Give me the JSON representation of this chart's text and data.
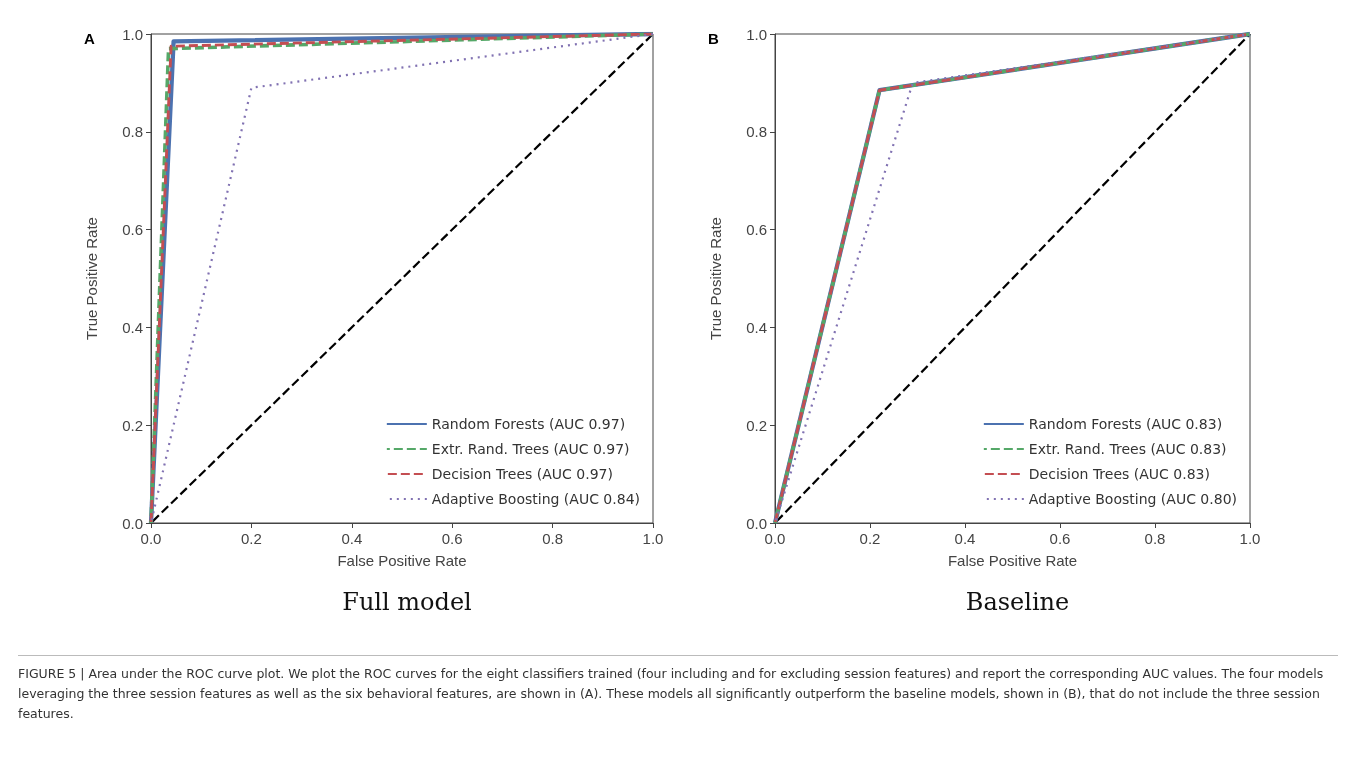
{
  "chart_data": [
    {
      "type": "line",
      "title": "A",
      "subtitle": "Full model",
      "xlabel": "False Positive Rate",
      "ylabel": "True Positive Rate",
      "xlim": [
        0,
        1
      ],
      "ylim": [
        0,
        1
      ],
      "xticks": [
        {
          "value": 0,
          "label": "0.0"
        },
        {
          "value": 0.2,
          "label": "0.2"
        },
        {
          "value": 0.4,
          "label": "0.4"
        },
        {
          "value": 0.6,
          "label": "0.6"
        },
        {
          "value": 0.8,
          "label": "0.8"
        },
        {
          "value": 1,
          "label": "1.0"
        }
      ],
      "yticks": [
        {
          "value": 0,
          "label": "0.0"
        },
        {
          "value": 0.2,
          "label": "0.2"
        },
        {
          "value": 0.4,
          "label": "0.4"
        },
        {
          "value": 0.6,
          "label": "0.6"
        },
        {
          "value": 0.8,
          "label": "0.8"
        },
        {
          "value": 1,
          "label": "1.0"
        }
      ],
      "grid": false,
      "legend": "bottom right",
      "marker": "none",
      "series": [
        {
          "name": "Random Forests (AUC 0.97)",
          "color": "#4c72b0",
          "line_style": "solid",
          "x": [
            0,
            0.045,
            1
          ],
          "values": [
            0,
            0.985,
            1
          ]
        },
        {
          "name": "Extr. Rand. Trees (AUC 0.97)",
          "color": "#55a868",
          "line_style": "dashed",
          "x": [
            0,
            0.035,
            1
          ],
          "values": [
            0,
            0.97,
            1
          ]
        },
        {
          "name": "Decision Trees (AUC 0.97)",
          "color": "#c44e52",
          "line_style": "dashed",
          "x": [
            0,
            0.04,
            1
          ],
          "values": [
            0,
            0.975,
            1
          ]
        },
        {
          "name": "Adaptive Boosting (AUC 0.84)",
          "color": "#8172b2",
          "line_style": "dotted",
          "x": [
            0,
            0.2,
            1
          ],
          "values": [
            0,
            0.89,
            1
          ]
        },
        {
          "color": "#000000",
          "line_style": "dashed",
          "x": [
            0,
            1
          ],
          "values": [
            0,
            1
          ]
        }
      ],
      "annotations": [
        "FIGURE 5 | Area under the ROC curve plot. We plot the ROC curves for the eight classifiers trained (four including and for excluding session features) and report the corresponding AUC values. The four models leveraging the three session features as well as the six behavioral features, are shown in (A). These models all significantly outperform the baseline models, shown in (B), that do not include the three session features."
      ]
    },
    {
      "type": "line",
      "title": "B",
      "subtitle": "Baseline",
      "xlabel": "False Positive Rate",
      "ylabel": "True Positive Rate",
      "xlim": [
        0,
        1
      ],
      "ylim": [
        0,
        1
      ],
      "xticks": [
        {
          "value": 0,
          "label": "0.0"
        },
        {
          "value": 0.2,
          "label": "0.2"
        },
        {
          "value": 0.4,
          "label": "0.4"
        },
        {
          "value": 0.6,
          "label": "0.6"
        },
        {
          "value": 0.8,
          "label": "0.8"
        },
        {
          "value": 1,
          "label": "1.0"
        }
      ],
      "yticks": [
        {
          "value": 0,
          "label": "0.0"
        },
        {
          "value": 0.2,
          "label": "0.2"
        },
        {
          "value": 0.4,
          "label": "0.4"
        },
        {
          "value": 0.6,
          "label": "0.6"
        },
        {
          "value": 0.8,
          "label": "0.8"
        },
        {
          "value": 1,
          "label": "1.0"
        }
      ],
      "grid": false,
      "legend": "bottom right",
      "marker": "none",
      "series": [
        {
          "name": "Random Forests (AUC 0.83)",
          "color": "#4c72b0",
          "line_style": "solid",
          "x": [
            0,
            0.22,
            1
          ],
          "values": [
            0,
            0.885,
            1
          ]
        },
        {
          "name": "Extr. Rand. Trees (AUC 0.83)",
          "color": "#55a868",
          "line_style": "dashed",
          "x": [
            0,
            0.22,
            1
          ],
          "values": [
            0,
            0.885,
            1
          ]
        },
        {
          "name": "Decision Trees (AUC 0.83)",
          "color": "#c44e52",
          "line_style": "dashed",
          "x": [
            0,
            0.22,
            1
          ],
          "values": [
            0,
            0.885,
            1
          ]
        },
        {
          "name": "Adaptive Boosting (AUC 0.80)",
          "color": "#8172b2",
          "line_style": "dotted",
          "x": [
            0,
            0.29,
            1
          ],
          "values": [
            0,
            0.9,
            1
          ]
        },
        {
          "color": "#000000",
          "line_style": "dashed",
          "x": [
            0,
            1
          ],
          "values": [
            0,
            1
          ]
        }
      ]
    }
  ]
}
